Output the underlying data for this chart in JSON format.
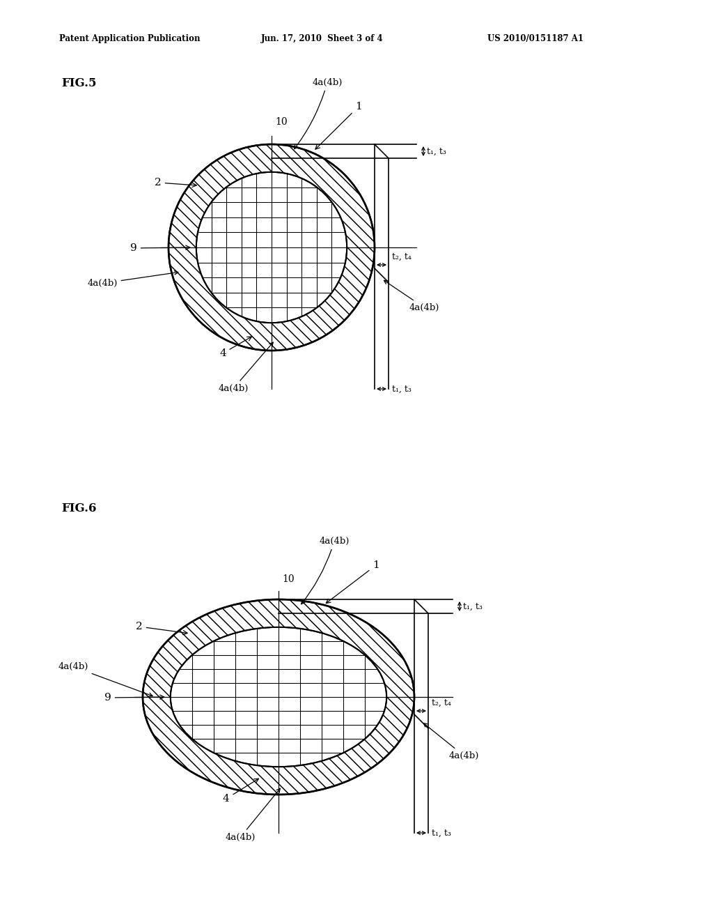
{
  "fig_width": 10.24,
  "fig_height": 13.2,
  "bg_color": "#ffffff",
  "header_text": "Patent Application Publication",
  "header_date": "Jun. 17, 2010  Sheet 3 of 4",
  "header_patent": "US 2010/0151187 A1",
  "fig5_label": "FIG.5",
  "fig6_label": "FIG.6",
  "line_color": "#000000"
}
